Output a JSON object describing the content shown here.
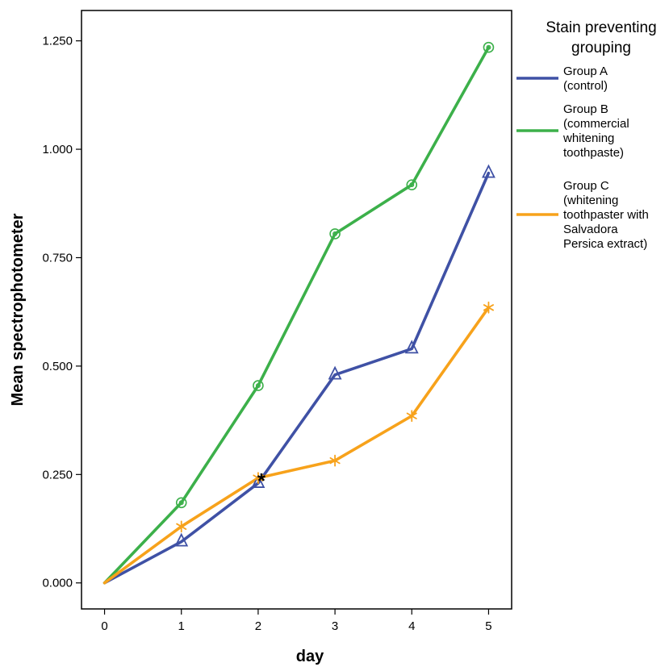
{
  "chart_data": {
    "type": "line",
    "xlabel": "day",
    "ylabel": "Mean spectrophotometer",
    "x": [
      0,
      1,
      2,
      3,
      4,
      5
    ],
    "x_tick_labels": [
      "0",
      "1",
      "2",
      "3",
      "4",
      "5"
    ],
    "y_ticks": [
      0,
      0.25,
      0.5,
      0.75,
      1.0,
      1.25
    ],
    "y_tick_labels": [
      "0.000",
      "0.250",
      "0.500",
      "0.750",
      "1.000",
      "1.250"
    ],
    "xlim": [
      -0.3,
      5.3
    ],
    "ylim": [
      -0.06,
      1.32
    ],
    "grid": false,
    "legend": {
      "title": "Stain preventing grouping",
      "placement": "right"
    },
    "series": [
      {
        "name": "Group A (control)",
        "color": "#3f51a5",
        "marker": "triangle",
        "values": [
          0.0,
          0.095,
          0.23,
          0.48,
          0.54,
          0.945
        ]
      },
      {
        "name": "Group B (commercial whitening toothpaste)",
        "color": "#3cb04a",
        "marker": "circle-dot",
        "values": [
          0.0,
          0.185,
          0.455,
          0.805,
          0.918,
          1.235
        ]
      },
      {
        "name": "Group C (whitening toothpaster with Salvadora Persica extract)",
        "color": "#f7a21b",
        "marker": "asterisk",
        "values": [
          0.0,
          0.13,
          0.242,
          0.282,
          0.385,
          0.635
        ]
      }
    ],
    "annotations": [
      {
        "text": "*",
        "x": 2,
        "y": 0.245,
        "color": "#000000"
      }
    ]
  },
  "legend_labels": {
    "title_lines": [
      "Stain preventing",
      "grouping"
    ],
    "items": [
      {
        "lines": [
          "Group A",
          "(control)"
        ]
      },
      {
        "lines": [
          "Group B",
          "(commercial",
          "whitening",
          "toothpaste)"
        ]
      },
      {
        "lines": [
          "Group C",
          "(whitening",
          "toothpaster with",
          "Salvadora",
          "Persica extract)"
        ]
      }
    ]
  }
}
